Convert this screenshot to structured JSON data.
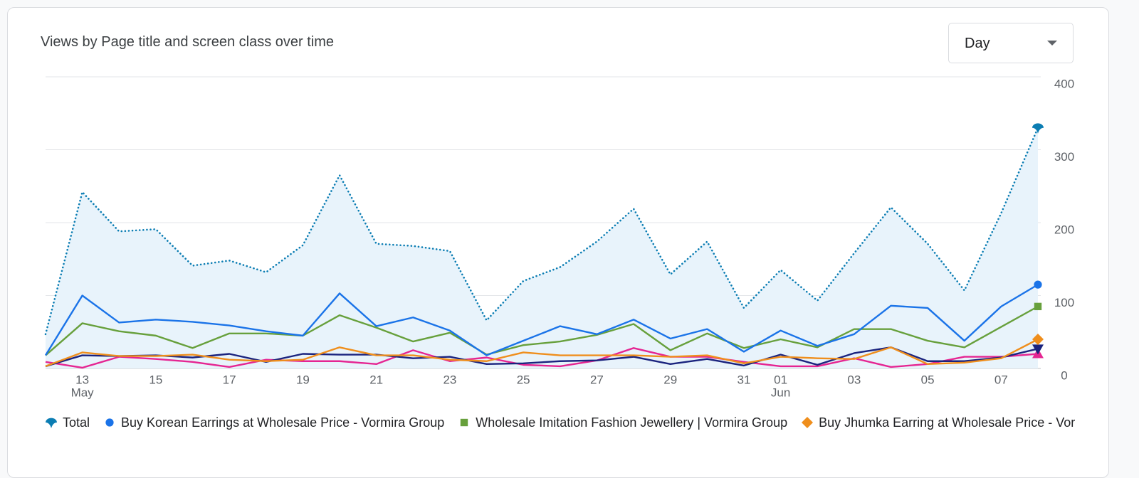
{
  "header": {
    "title": "Views by Page title and screen class over time",
    "dropdown": "Day"
  },
  "chart_data": {
    "type": "line",
    "categories": [
      null,
      "13",
      null,
      "15",
      null,
      "17",
      null,
      "19",
      null,
      "21",
      null,
      "23",
      null,
      "25",
      null,
      "27",
      null,
      "29",
      null,
      "31",
      "01",
      null,
      "03",
      null,
      "05",
      null,
      "07",
      null
    ],
    "category_sublabels": [
      null,
      "May",
      null,
      null,
      null,
      null,
      null,
      null,
      null,
      null,
      null,
      null,
      null,
      null,
      null,
      null,
      null,
      null,
      null,
      null,
      "Jun",
      null,
      null,
      null,
      null,
      null,
      null,
      null
    ],
    "ylim": [
      0,
      400
    ],
    "yticks": [
      0,
      100,
      200,
      300,
      400
    ],
    "grid": true,
    "legend": "bottom",
    "series": [
      {
        "name": "Total",
        "color": "#0b7db3",
        "line_style": "dotted",
        "area_fill": "#e8f3fb",
        "marker": "pin",
        "values": [
          47,
          242,
          188,
          191,
          141,
          148,
          132,
          169,
          265,
          171,
          168,
          161,
          66,
          120,
          139,
          174,
          219,
          129,
          174,
          83,
          135,
          93,
          158,
          221,
          171,
          107,
          213,
          330
        ]
      },
      {
        "name": "Buy Korean Earrings at Wholesale Price - Vormira Group",
        "color": "#1a73e8",
        "line_style": "solid",
        "marker": "circle",
        "values": [
          18,
          100,
          63,
          67,
          64,
          59,
          51,
          45,
          103,
          58,
          70,
          52,
          18,
          38,
          58,
          47,
          67,
          41,
          54,
          23,
          52,
          31,
          47,
          86,
          83,
          38,
          85,
          115
        ]
      },
      {
        "name": "Wholesale Imitation Fashion Jewellery | Vormira Group",
        "color": "#67a03c",
        "line_style": "solid",
        "marker": "square",
        "values": [
          18,
          62,
          51,
          45,
          28,
          48,
          48,
          45,
          73,
          56,
          37,
          49,
          19,
          32,
          37,
          46,
          61,
          25,
          48,
          28,
          40,
          29,
          54,
          54,
          38,
          29,
          57,
          85
        ]
      },
      {
        "name": "Buy Jhumka Earring at Wholesale Price - Vormira G",
        "color": "#ef8e1c",
        "line_style": "solid",
        "marker": "diamond",
        "values": [
          3,
          22,
          17,
          17,
          19,
          12,
          10,
          12,
          29,
          18,
          18,
          12,
          10,
          22,
          18,
          18,
          18,
          16,
          18,
          7,
          16,
          14,
          13,
          29,
          6,
          8,
          14,
          40
        ]
      },
      {
        "color": "#1a237e",
        "line_style": "solid",
        "marker": "triangle-down",
        "values": [
          3,
          18,
          17,
          18,
          15,
          20,
          9,
          20,
          19,
          19,
          14,
          16,
          6,
          7,
          10,
          11,
          16,
          6,
          13,
          4,
          19,
          5,
          21,
          29,
          10,
          10,
          15,
          27
        ]
      },
      {
        "color": "#e52592",
        "line_style": "solid",
        "marker": "triangle",
        "values": [
          9,
          1,
          16,
          13,
          9,
          2,
          12,
          10,
          10,
          6,
          25,
          10,
          15,
          5,
          3,
          11,
          28,
          16,
          16,
          9,
          3,
          3,
          14,
          2,
          6,
          16,
          16,
          20
        ]
      }
    ]
  }
}
